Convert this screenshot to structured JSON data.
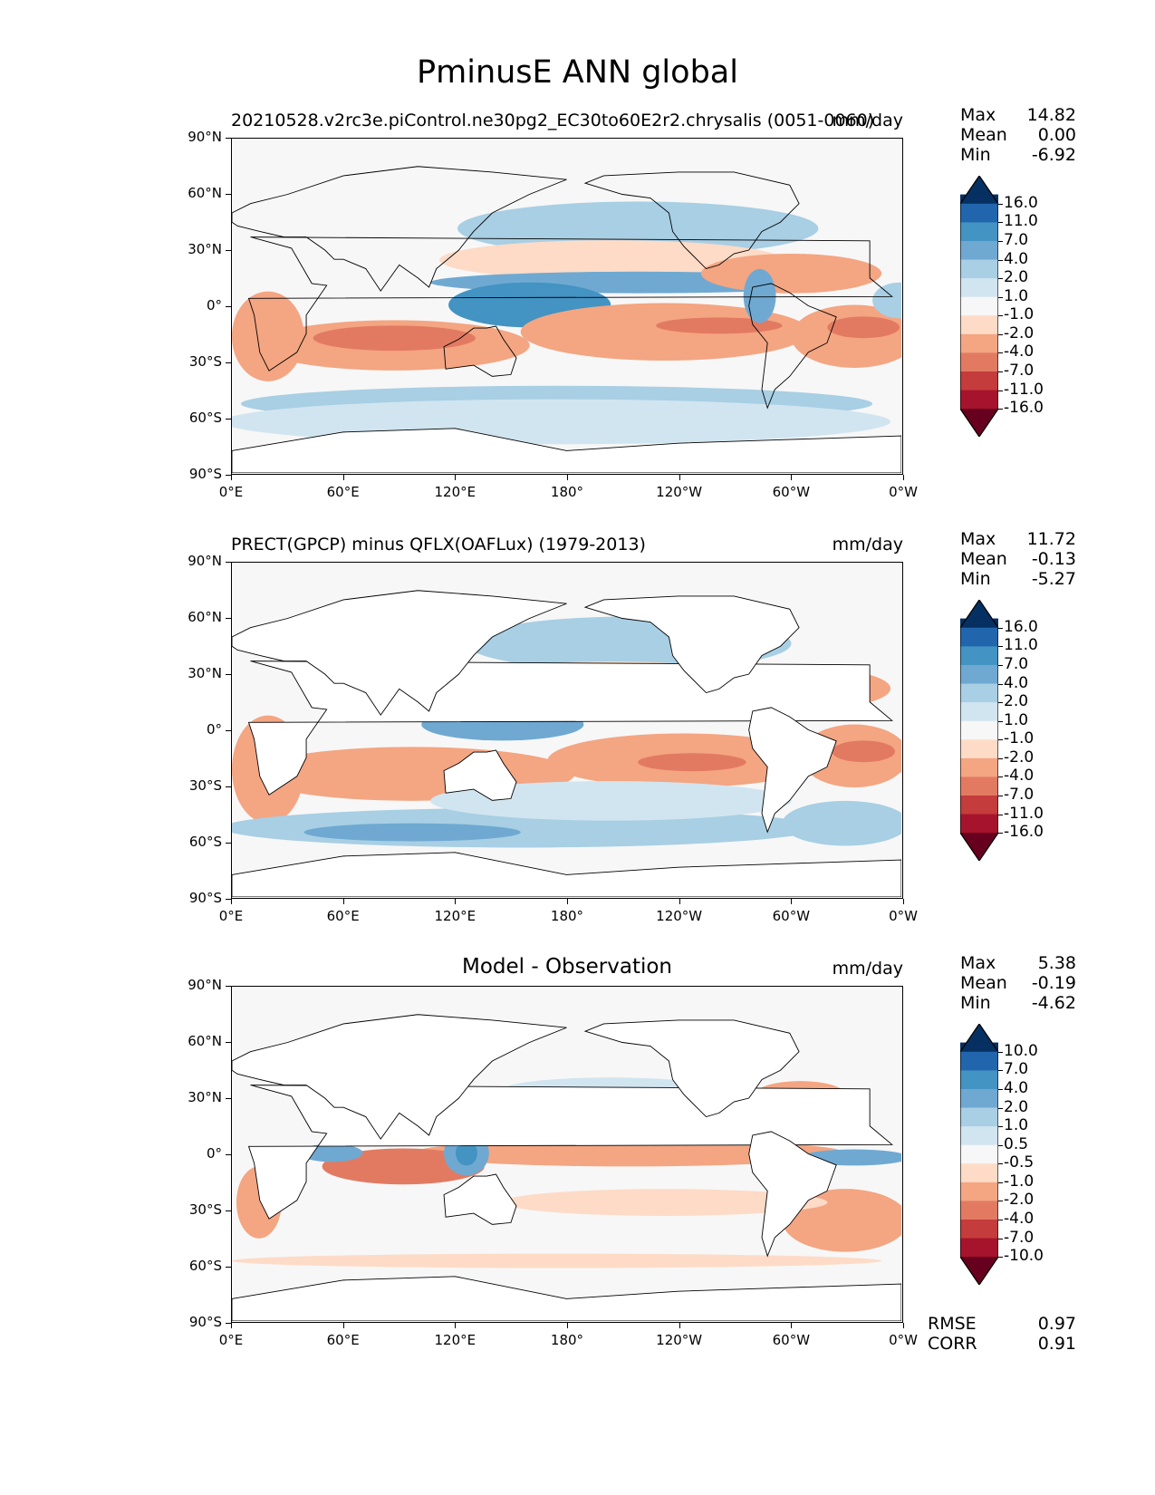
{
  "figure": {
    "title": "PminusE ANN global"
  },
  "panels": [
    {
      "title": "20210528.v2rc3e.piControl.ne30pg2_EC30to60E2r2.chrysalis (0051-0060)",
      "units": "mm/day",
      "stats": [
        {
          "label": "Max",
          "value": "14.82"
        },
        {
          "label": "Mean",
          "value": "0.00"
        },
        {
          "label": "Min",
          "value": "-6.92"
        }
      ],
      "colorbar_labels": [
        "16.0",
        "11.0",
        "7.0",
        "4.0",
        "2.0",
        "1.0",
        "-1.0",
        "-2.0",
        "-4.0",
        "-7.0",
        "-11.0",
        "-16.0"
      ]
    },
    {
      "title": "PRECT(GPCP) minus QFLX(OAFLux) (1979-2013)",
      "units": "mm/day",
      "stats": [
        {
          "label": "Max",
          "value": "11.72"
        },
        {
          "label": "Mean",
          "value": "-0.13"
        },
        {
          "label": "Min",
          "value": "-5.27"
        }
      ],
      "colorbar_labels": [
        "16.0",
        "11.0",
        "7.0",
        "4.0",
        "2.0",
        "1.0",
        "-1.0",
        "-2.0",
        "-4.0",
        "-7.0",
        "-11.0",
        "-16.0"
      ]
    },
    {
      "title": "Model - Observation",
      "units": "mm/day",
      "stats": [
        {
          "label": "Max",
          "value": "5.38"
        },
        {
          "label": "Mean",
          "value": "-0.19"
        },
        {
          "label": "Min",
          "value": "-4.62"
        }
      ],
      "colorbar_labels": [
        "10.0",
        "7.0",
        "4.0",
        "2.0",
        "1.0",
        "0.5",
        "-0.5",
        "-1.0",
        "-2.0",
        "-4.0",
        "-7.0",
        "-10.0"
      ],
      "metrics": [
        {
          "label": "RMSE",
          "value": "0.97"
        },
        {
          "label": "CORR",
          "value": "0.91"
        }
      ]
    }
  ],
  "axes": {
    "lat_ticks": [
      "90°N",
      "60°N",
      "30°N",
      "0°",
      "30°S",
      "60°S",
      "90°S"
    ],
    "lon_ticks": [
      "0°E",
      "60°E",
      "120°E",
      "180°",
      "120°W",
      "60°W",
      "0°W"
    ]
  },
  "colormap": {
    "colors": [
      "#053061",
      "#2166ac",
      "#4393c3",
      "#6fa9d2",
      "#a8cfe4",
      "#d1e5f0",
      "#f7f7f7",
      "#fddbc7",
      "#f4a582",
      "#e27a62",
      "#c43c3c",
      "#a5142c",
      "#67001f"
    ]
  }
}
